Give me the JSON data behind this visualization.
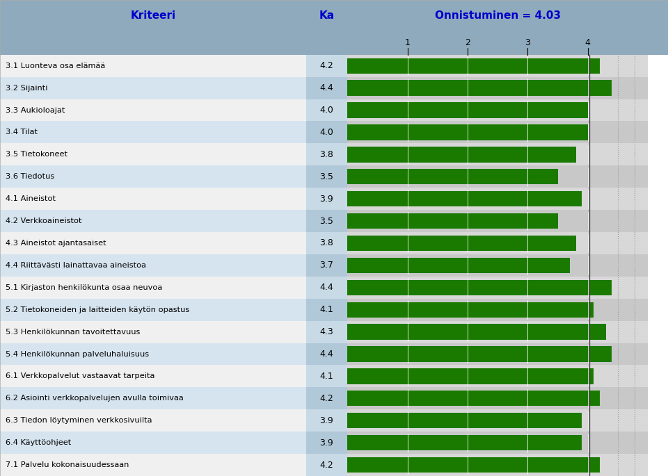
{
  "title": "Onnistuminen = 4.03",
  "col1_header": "Kriteeri",
  "col2_header": "Ka",
  "categories": [
    "3.1 Luonteva osa elämää",
    "3.2 Sijainti",
    "3.3 Aukioloajat",
    "3.4 Tilat",
    "3.5 Tietokoneet",
    "3.6 Tiedotus",
    "4.1 Aineistot",
    "4.2 Verkkoaineistot",
    "4.3 Aineistot ajantasaiset",
    "4.4 Riittävästi lainattavaa aineistoa",
    "5.1 Kirjaston henkilökunta osaa neuvoa",
    "5.2 Tietokoneiden ja laitteiden käytön opastus",
    "5.3 Henkilökunnan tavoitettavuus",
    "5.4 Henkilökunnan palveluhaluisuus",
    "6.1 Verkkopalvelut vastaavat tarpeita",
    "6.2 Asiointi verkkopalvelujen avulla toimivaa",
    "6.3 Tiedon löytyminen verkkosivuilta",
    "6.4 Käyttöohjeet",
    "7.1 Palvelu kokonaisuudessaan"
  ],
  "values": [
    4.2,
    4.4,
    4.0,
    4.0,
    3.8,
    3.5,
    3.9,
    3.5,
    3.8,
    3.7,
    4.4,
    4.1,
    4.3,
    4.4,
    4.1,
    4.2,
    3.9,
    3.9,
    4.2
  ],
  "bar_color": "#1a7a00",
  "avg_line": 4.03,
  "header_bg_color": "#8faabc",
  "header_text_color": "#0000cc",
  "row_bg_light": "#f0f0f0",
  "row_bg_blue": "#d6e4ef",
  "bar_bg_light": "#d8d8d8",
  "bar_bg_dark": "#c8c8c8",
  "ka_bg_light": "#c8dae6",
  "ka_bg_blue": "#b0c8d8",
  "xticks": [
    1,
    2,
    3,
    4
  ],
  "data_min": 0,
  "data_max": 5.0,
  "dotted_lines": [
    4.5
  ],
  "avg_line_color": "#444444",
  "dot_line_color": "#999999"
}
